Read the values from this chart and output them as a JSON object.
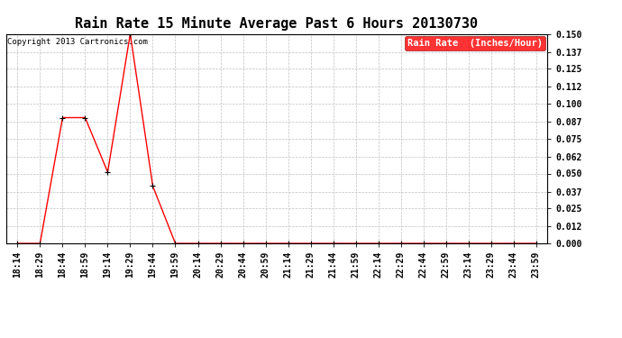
{
  "title": "Rain Rate 15 Minute Average Past 6 Hours 20130730",
  "copyright": "Copyright 2013 Cartronics.com",
  "legend_label": "Rain Rate  (Inches/Hour)",
  "legend_bg": "#ff0000",
  "legend_text_color": "#ffffff",
  "line_color": "#ff0000",
  "marker_color": "#000000",
  "background_color": "#ffffff",
  "grid_color": "#c0c0c0",
  "x_labels": [
    "18:14",
    "18:29",
    "18:44",
    "18:59",
    "19:14",
    "19:29",
    "19:44",
    "19:59",
    "20:14",
    "20:29",
    "20:44",
    "20:59",
    "21:14",
    "21:29",
    "21:44",
    "21:59",
    "22:14",
    "22:29",
    "22:44",
    "22:59",
    "23:14",
    "23:29",
    "23:44",
    "23:59"
  ],
  "y_values": [
    0.0,
    0.0,
    0.09,
    0.09,
    0.051,
    0.15,
    0.041,
    0.0,
    0.0,
    0.0,
    0.0,
    0.0,
    0.0,
    0.0,
    0.0,
    0.0,
    0.0,
    0.0,
    0.0,
    0.0,
    0.0,
    0.0,
    0.0,
    0.0
  ],
  "ylim": [
    0.0,
    0.15
  ],
  "yticks": [
    0.0,
    0.012,
    0.025,
    0.037,
    0.05,
    0.062,
    0.075,
    0.087,
    0.1,
    0.112,
    0.125,
    0.137,
    0.15
  ],
  "title_fontsize": 11,
  "copyright_fontsize": 6.5,
  "tick_fontsize": 7,
  "legend_fontsize": 7.5
}
